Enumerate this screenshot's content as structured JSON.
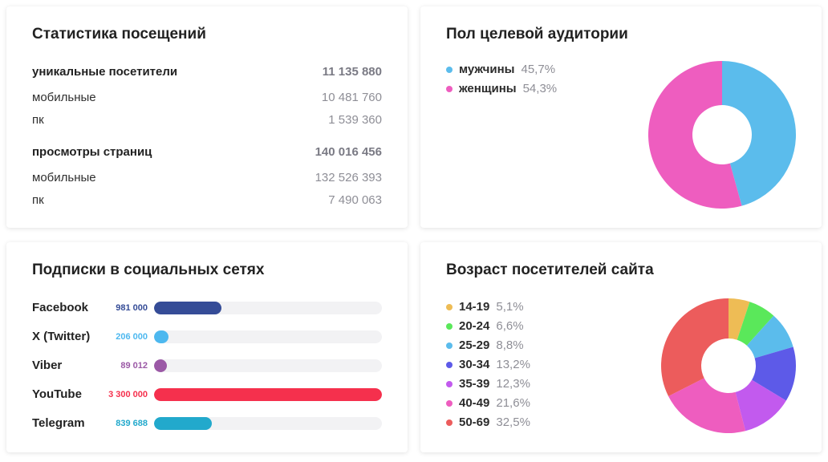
{
  "visits": {
    "title": "Статистика посещений",
    "rows": [
      {
        "label": "уникальные посетители",
        "value": "11 135 880",
        "head": true
      },
      {
        "label": "мобильные",
        "value": "10 481 760",
        "head": false
      },
      {
        "label": "пк",
        "value": "1 539 360",
        "head": false
      },
      {
        "label": "просмотры страниц",
        "value": "140 016 456",
        "head": true
      },
      {
        "label": "мобильные",
        "value": "132 526 393",
        "head": false
      },
      {
        "label": "пк",
        "value": "7 490 063",
        "head": false
      }
    ]
  },
  "social": {
    "title": "Подписки в социальных сетях"
  },
  "gender": {
    "title": "Пол целевой аудитории"
  },
  "age": {
    "title": "Возраст посетителей сайта"
  },
  "chart_data": [
    {
      "type": "bar",
      "orientation": "horizontal",
      "title": "Подписки в социальных сетях",
      "categories": [
        "Facebook",
        "X (Twitter)",
        "Viber",
        "YouTube",
        "Telegram"
      ],
      "values": [
        981000,
        206000,
        89012,
        3300000,
        839688
      ],
      "value_labels": [
        "981 000",
        "206 000",
        "89 012",
        "3 300 000",
        "839 688"
      ],
      "colors": [
        "#354c97",
        "#4db8ef",
        "#9b59a6",
        "#f5304d",
        "#22a9cc"
      ],
      "xlim": [
        0,
        3300000
      ],
      "grid": false
    },
    {
      "type": "pie",
      "donut": true,
      "title": "Пол целевой аудитории",
      "labels": [
        "мужчины",
        "женщины"
      ],
      "values": [
        45.7,
        54.3
      ],
      "value_labels": [
        "45,7%",
        "54,3%"
      ],
      "colors": [
        "#5bbcec",
        "#ee5dbf"
      ],
      "legend": "left"
    },
    {
      "type": "pie",
      "donut": true,
      "title": "Возраст посетителей сайта",
      "labels": [
        "14-19",
        "20-24",
        "25-29",
        "30-34",
        "35-39",
        "40-49",
        "50-69"
      ],
      "values": [
        5.1,
        6.6,
        8.8,
        13.2,
        12.3,
        21.6,
        32.5
      ],
      "value_labels": [
        "5,1%",
        "6,6%",
        "8,8%",
        "13,2%",
        "12,3%",
        "21,6%",
        "32,5%"
      ],
      "colors": [
        "#eebc55",
        "#5ae85a",
        "#5bbcec",
        "#5d5ae8",
        "#c25aee",
        "#ee5dbf",
        "#ec5c5c"
      ],
      "legend": "left"
    }
  ]
}
